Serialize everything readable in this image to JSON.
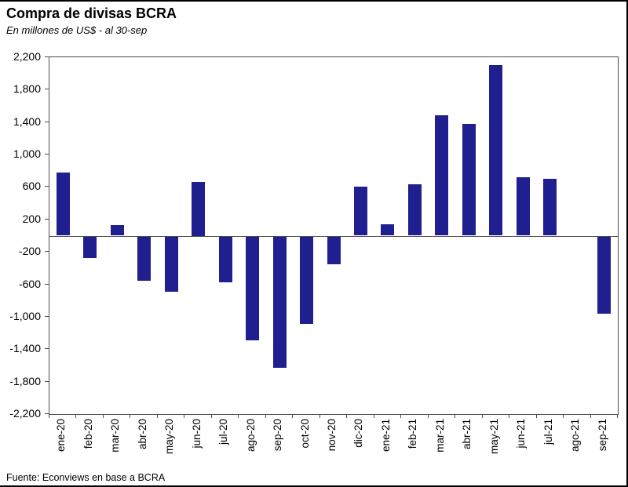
{
  "title": "Compra de divisas BCRA",
  "subtitle": "En millones de US$ - al 30-sep",
  "source": "Fuente: Econviews en base a BCRA",
  "colors": {
    "bar": "#1F1F8F",
    "axis": "#4d4d4d",
    "text": "#000000",
    "background": "#ffffff"
  },
  "chart_data": {
    "type": "bar",
    "title": "Compra de divisas BCRA",
    "subtitle": "En millones de US$ - al 30-sep",
    "xlabel": "",
    "ylabel": "Millones de US$",
    "ylim": [
      -2200,
      2200
    ],
    "ytick_step": 400,
    "grid": "off",
    "legend": "none",
    "bar_color": "#1F1F8F",
    "categories": [
      "ene-20",
      "feb-20",
      "mar-20",
      "abr-20",
      "may-20",
      "jun-20",
      "jul-20",
      "ago-20",
      "sep-20",
      "oct-20",
      "nov-20",
      "dic-20",
      "ene-21",
      "feb-21",
      "mar-21",
      "abr-21",
      "may-21",
      "jun-21",
      "jul-21",
      "ago-21",
      "sep-21"
    ],
    "values": [
      780,
      -270,
      130,
      -550,
      -680,
      660,
      -570,
      -1280,
      -1620,
      -1080,
      -340,
      600,
      140,
      630,
      1480,
      1380,
      2100,
      720,
      700,
      0,
      -950
    ]
  }
}
